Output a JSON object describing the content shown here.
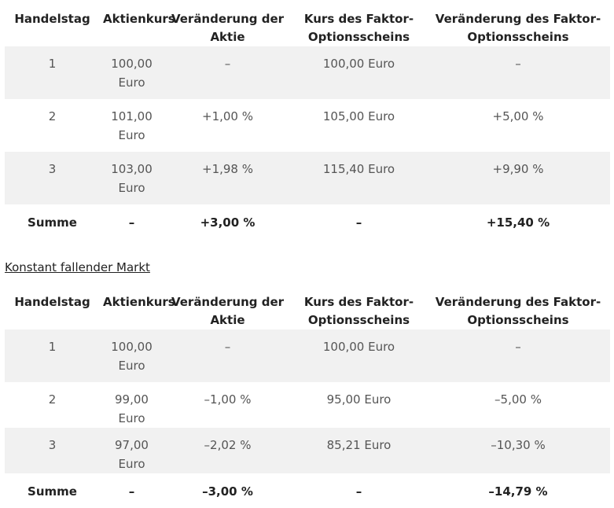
{
  "table1": {
    "headers": [
      "Handelstag",
      "Aktienkurs",
      "Veränderung der Aktie",
      "Kurs des Faktor-Optionsscheins",
      "Veränderung des Faktor-Optionsscheins"
    ],
    "rows": [
      [
        "1",
        "100,00 Euro",
        "–",
        "100,00 Euro",
        "–"
      ],
      [
        "2",
        "101,00 Euro",
        "+1,00 %",
        "105,00 Euro",
        "+5,00 %"
      ],
      [
        "3",
        "103,00 Euro",
        "+1,98 %",
        "115,40 Euro",
        "+9,90 %"
      ]
    ],
    "summary": [
      "Summe",
      "–",
      "+3,00 %",
      "–",
      "+15,40 %"
    ]
  },
  "heading2": "Konstant fallender Markt",
  "table2": {
    "headers": [
      "Handelstag",
      "Aktienkurs",
      "Veränderung der Aktie",
      "Kurs des Faktor-Optionsscheins",
      "Veränderung des Faktor-Optionsscheins"
    ],
    "rows": [
      [
        "1",
        "100,00 Euro",
        "–",
        "100,00 Euro",
        "–"
      ],
      [
        "2",
        "99,00 Euro",
        "–1,00 %",
        "95,00 Euro",
        "–5,00 %"
      ],
      [
        "3",
        "97,00 Euro",
        "–2,02 %",
        "85,21 Euro",
        "–10,30 %"
      ]
    ],
    "summary": [
      "Summe",
      "–",
      "–3,00 %",
      "–",
      "–14,79 %"
    ]
  }
}
